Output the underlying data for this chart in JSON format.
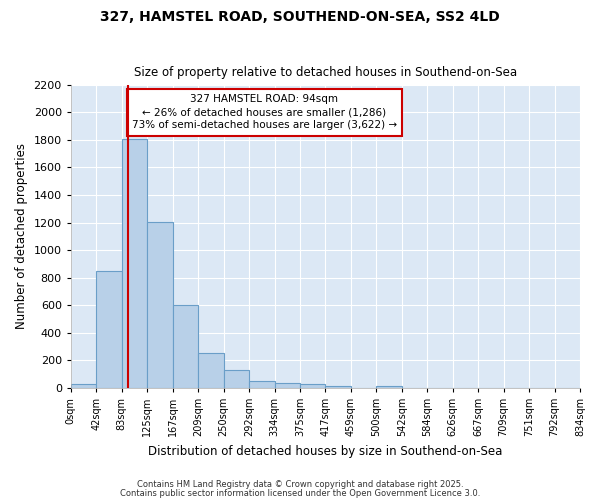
{
  "title": "327, HAMSTEL ROAD, SOUTHEND-ON-SEA, SS2 4LD",
  "subtitle": "Size of property relative to detached houses in Southend-on-Sea",
  "xlabel": "Distribution of detached houses by size in Southend-on-Sea",
  "ylabel": "Number of detached properties",
  "bar_values": [
    25,
    845,
    1810,
    1205,
    600,
    255,
    130,
    47,
    35,
    25,
    15,
    0,
    15,
    0,
    0,
    0,
    0,
    0,
    0,
    0
  ],
  "bin_labels": [
    "0sqm",
    "42sqm",
    "83sqm",
    "125sqm",
    "167sqm",
    "209sqm",
    "250sqm",
    "292sqm",
    "334sqm",
    "375sqm",
    "417sqm",
    "459sqm",
    "500sqm",
    "542sqm",
    "584sqm",
    "626sqm",
    "667sqm",
    "709sqm",
    "751sqm",
    "792sqm",
    "834sqm"
  ],
  "bar_color": "#b8d0e8",
  "bar_edge_color": "#6a9ec8",
  "vline_x_bin": 2,
  "vline_color": "#cc0000",
  "annotation_text": "327 HAMSTEL ROAD: 94sqm\n← 26% of detached houses are smaller (1,286)\n73% of semi-detached houses are larger (3,622) →",
  "annotation_box_color": "#ffffff",
  "annotation_box_edge": "#cc0000",
  "bg_color": "#ffffff",
  "plot_bg": "#dce8f5",
  "grid_color": "#ffffff",
  "ylim": [
    0,
    2200
  ],
  "yticks": [
    0,
    200,
    400,
    600,
    800,
    1000,
    1200,
    1400,
    1600,
    1800,
    2000,
    2200
  ],
  "footer1": "Contains HM Land Registry data © Crown copyright and database right 2025.",
  "footer2": "Contains public sector information licensed under the Open Government Licence 3.0."
}
